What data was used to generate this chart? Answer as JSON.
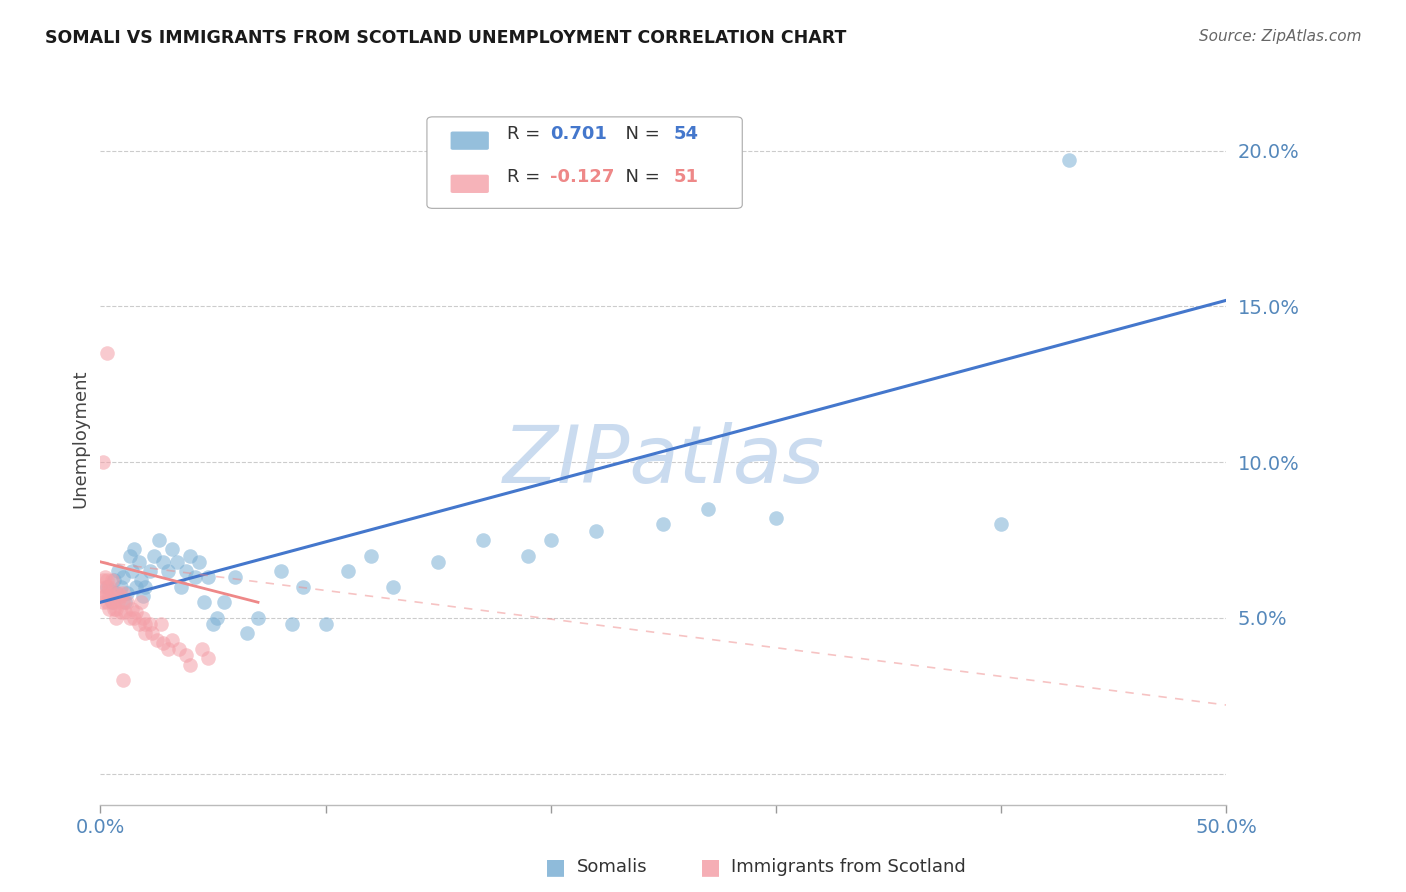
{
  "title": "SOMALI VS IMMIGRANTS FROM SCOTLAND UNEMPLOYMENT CORRELATION CHART",
  "source": "Source: ZipAtlas.com",
  "ylabel": "Unemployment",
  "y_ticks": [
    0.0,
    0.05,
    0.1,
    0.15,
    0.2
  ],
  "y_tick_labels": [
    "",
    "5.0%",
    "10.0%",
    "15.0%",
    "20.0%"
  ],
  "x_ticks": [
    0.0,
    0.1,
    0.2,
    0.3,
    0.4,
    0.5
  ],
  "xlim": [
    0.0,
    0.5
  ],
  "ylim": [
    -0.01,
    0.225
  ],
  "somali_R": "0.701",
  "somali_N": "54",
  "scotland_R": "-0.127",
  "scotland_N": "51",
  "somali_color": "#7BAFD4",
  "scotland_color": "#F4A0A8",
  "somali_line_color": "#4477CC",
  "scotland_line_color": "#EE8888",
  "watermark": "ZIPatlas",
  "watermark_color": "#C5D8EE",
  "legend_label_1": "Somalis",
  "legend_label_2": "Immigrants from Scotland",
  "tick_color": "#5588BB",
  "somali_points": [
    [
      0.003,
      0.06
    ],
    [
      0.005,
      0.055
    ],
    [
      0.006,
      0.062
    ],
    [
      0.007,
      0.058
    ],
    [
      0.008,
      0.065
    ],
    [
      0.009,
      0.06
    ],
    [
      0.01,
      0.063
    ],
    [
      0.011,
      0.055
    ],
    [
      0.012,
      0.058
    ],
    [
      0.013,
      0.07
    ],
    [
      0.014,
      0.065
    ],
    [
      0.015,
      0.072
    ],
    [
      0.016,
      0.06
    ],
    [
      0.017,
      0.068
    ],
    [
      0.018,
      0.062
    ],
    [
      0.019,
      0.057
    ],
    [
      0.02,
      0.06
    ],
    [
      0.022,
      0.065
    ],
    [
      0.024,
      0.07
    ],
    [
      0.026,
      0.075
    ],
    [
      0.028,
      0.068
    ],
    [
      0.03,
      0.065
    ],
    [
      0.032,
      0.072
    ],
    [
      0.034,
      0.068
    ],
    [
      0.036,
      0.06
    ],
    [
      0.038,
      0.065
    ],
    [
      0.04,
      0.07
    ],
    [
      0.042,
      0.063
    ],
    [
      0.044,
      0.068
    ],
    [
      0.046,
      0.055
    ],
    [
      0.048,
      0.063
    ],
    [
      0.05,
      0.048
    ],
    [
      0.052,
      0.05
    ],
    [
      0.055,
      0.055
    ],
    [
      0.06,
      0.063
    ],
    [
      0.065,
      0.045
    ],
    [
      0.07,
      0.05
    ],
    [
      0.08,
      0.065
    ],
    [
      0.085,
      0.048
    ],
    [
      0.09,
      0.06
    ],
    [
      0.1,
      0.048
    ],
    [
      0.11,
      0.065
    ],
    [
      0.12,
      0.07
    ],
    [
      0.13,
      0.06
    ],
    [
      0.15,
      0.068
    ],
    [
      0.17,
      0.075
    ],
    [
      0.19,
      0.07
    ],
    [
      0.2,
      0.075
    ],
    [
      0.22,
      0.078
    ],
    [
      0.25,
      0.08
    ],
    [
      0.27,
      0.085
    ],
    [
      0.3,
      0.082
    ],
    [
      0.4,
      0.08
    ],
    [
      0.43,
      0.197
    ]
  ],
  "scotland_points": [
    [
      0.001,
      0.062
    ],
    [
      0.001,
      0.058
    ],
    [
      0.001,
      0.055
    ],
    [
      0.002,
      0.06
    ],
    [
      0.002,
      0.057
    ],
    [
      0.002,
      0.063
    ],
    [
      0.003,
      0.058
    ],
    [
      0.003,
      0.055
    ],
    [
      0.003,
      0.062
    ],
    [
      0.004,
      0.057
    ],
    [
      0.004,
      0.06
    ],
    [
      0.004,
      0.053
    ],
    [
      0.005,
      0.055
    ],
    [
      0.005,
      0.058
    ],
    [
      0.005,
      0.062
    ],
    [
      0.006,
      0.053
    ],
    [
      0.006,
      0.055
    ],
    [
      0.007,
      0.05
    ],
    [
      0.007,
      0.053
    ],
    [
      0.008,
      0.058
    ],
    [
      0.008,
      0.055
    ],
    [
      0.009,
      0.057
    ],
    [
      0.009,
      0.052
    ],
    [
      0.01,
      0.055
    ],
    [
      0.01,
      0.058
    ],
    [
      0.011,
      0.052
    ],
    [
      0.012,
      0.055
    ],
    [
      0.013,
      0.05
    ],
    [
      0.014,
      0.053
    ],
    [
      0.015,
      0.05
    ],
    [
      0.016,
      0.052
    ],
    [
      0.017,
      0.048
    ],
    [
      0.018,
      0.055
    ],
    [
      0.019,
      0.05
    ],
    [
      0.02,
      0.045
    ],
    [
      0.02,
      0.048
    ],
    [
      0.022,
      0.048
    ],
    [
      0.023,
      0.045
    ],
    [
      0.025,
      0.043
    ],
    [
      0.027,
      0.048
    ],
    [
      0.028,
      0.042
    ],
    [
      0.03,
      0.04
    ],
    [
      0.032,
      0.043
    ],
    [
      0.035,
      0.04
    ],
    [
      0.038,
      0.038
    ],
    [
      0.04,
      0.035
    ],
    [
      0.045,
      0.04
    ],
    [
      0.048,
      0.037
    ],
    [
      0.003,
      0.135
    ],
    [
      0.001,
      0.1
    ],
    [
      0.01,
      0.03
    ]
  ],
  "somali_regression": [
    0.0,
    0.055,
    0.5,
    0.152
  ],
  "scotland_regression_solid": [
    0.0,
    0.068,
    0.07,
    0.055
  ],
  "scotland_regression_dashed": [
    0.0,
    0.068,
    0.5,
    0.022
  ]
}
